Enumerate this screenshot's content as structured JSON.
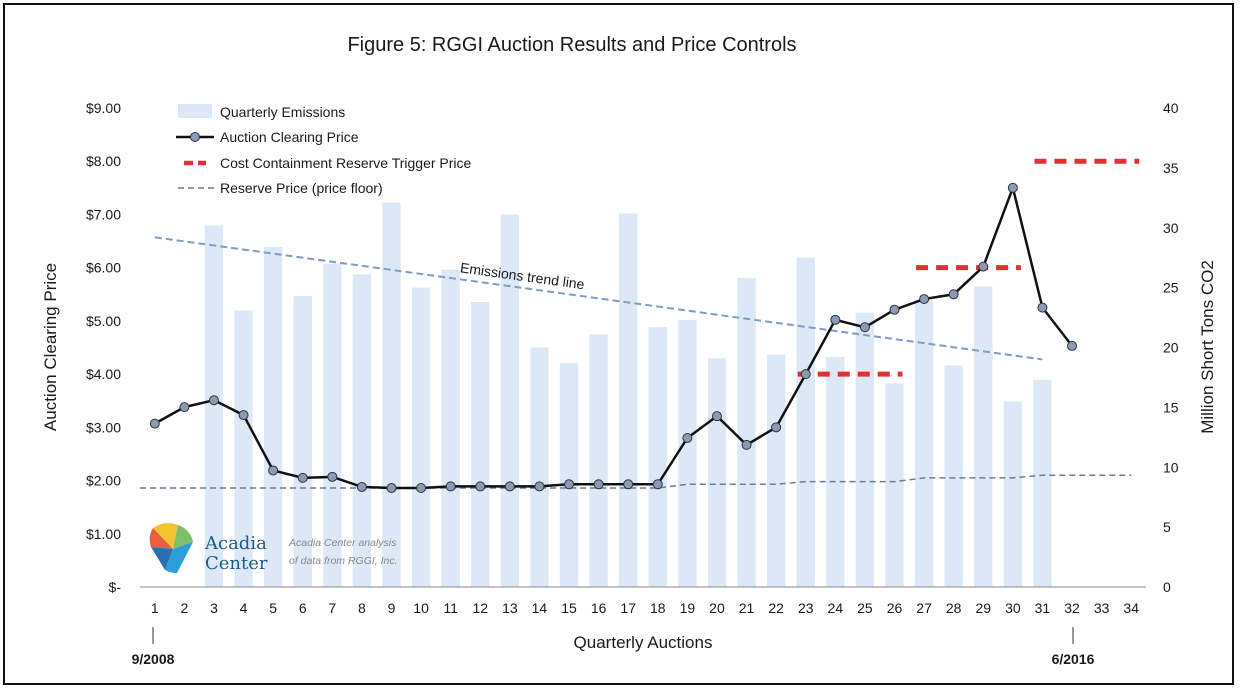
{
  "chart_data": {
    "type": "bar",
    "title": "Figure 5: RGGI Auction Results and Price Controls",
    "xlabel": "Quarterly Auctions",
    "ylabel": "Auction Clearing Price",
    "y2label": "Million Short Tons CO2",
    "categories": [
      "1",
      "2",
      "3",
      "4",
      "5",
      "6",
      "7",
      "8",
      "9",
      "10",
      "11",
      "12",
      "13",
      "14",
      "15",
      "16",
      "17",
      "18",
      "19",
      "20",
      "21",
      "22",
      "23",
      "24",
      "25",
      "26",
      "27",
      "28",
      "29",
      "30",
      "31",
      "32",
      "33",
      "34"
    ],
    "y_ticks": [
      "$-",
      "$1.00",
      "$2.00",
      "$3.00",
      "$4.00",
      "$5.00",
      "$6.00",
      "$7.00",
      "$8.00",
      "$9.00"
    ],
    "y2_ticks": [
      "0",
      "5",
      "10",
      "15",
      "20",
      "25",
      "30",
      "35",
      "40"
    ],
    "ylim": [
      0,
      9
    ],
    "y2lim": [
      0,
      40
    ],
    "start_marker": "9/2008",
    "end_marker": "6/2016",
    "series": [
      {
        "name": "Quarterly Emissions",
        "type": "bar",
        "axis": "right",
        "color": "#dce8f5",
        "values": [
          null,
          null,
          30.2,
          23.1,
          28.4,
          24.3,
          27.0,
          26.1,
          32.1,
          25.0,
          26.5,
          23.8,
          31.1,
          20.0,
          18.7,
          21.1,
          31.2,
          21.7,
          22.3,
          19.1,
          25.8,
          19.4,
          27.5,
          19.2,
          22.9,
          17.0,
          24.0,
          18.5,
          25.1,
          15.5,
          17.3,
          null,
          null,
          null
        ]
      },
      {
        "name": "Auction Clearing Price",
        "type": "line",
        "axis": "left",
        "color": "#111111",
        "marker_color": "#8a9bb8",
        "values": [
          3.07,
          3.38,
          3.51,
          3.23,
          2.19,
          2.05,
          2.07,
          1.88,
          1.86,
          1.86,
          1.89,
          1.89,
          1.89,
          1.89,
          1.93,
          1.93,
          1.93,
          1.93,
          2.8,
          3.21,
          2.67,
          3.0,
          4.0,
          5.02,
          4.88,
          5.21,
          5.41,
          5.5,
          6.02,
          7.5,
          5.25,
          4.53,
          null,
          null
        ]
      },
      {
        "name": "Cost Containment Reserve Trigger Price",
        "type": "dashed-steps",
        "axis": "left",
        "color": "#e03030",
        "segments": [
          {
            "x_from": 23,
            "x_to": 26,
            "value": 4.0
          },
          {
            "x_from": 27,
            "x_to": 30,
            "value": 6.0
          },
          {
            "x_from": 31,
            "x_to": 34,
            "value": 8.0
          }
        ]
      },
      {
        "name": "Reserve Price (price floor)",
        "type": "dashed-line",
        "axis": "left",
        "color": "#6b7d96",
        "x": [
          1,
          18,
          19,
          22,
          23,
          26,
          27,
          30,
          31,
          34
        ],
        "values": [
          1.86,
          1.86,
          1.93,
          1.93,
          1.98,
          1.98,
          2.05,
          2.05,
          2.1,
          2.1
        ]
      }
    ],
    "trend_line": {
      "label": "Emissions trend line",
      "color": "#7f9cc4",
      "axis": "right",
      "x": [
        1,
        31
      ],
      "values": [
        29.2,
        19.0
      ]
    },
    "legend_position": "top-left",
    "grid": false
  },
  "logo": {
    "line1": "Acadia",
    "line2": "Center",
    "credit_line1": "Acadia Center analysis",
    "credit_line2": "of data from RGGI, Inc.",
    "colors": [
      "#f2c230",
      "#e8603a",
      "#2a6fae",
      "#7cc16a",
      "#2d9fd8"
    ]
  }
}
